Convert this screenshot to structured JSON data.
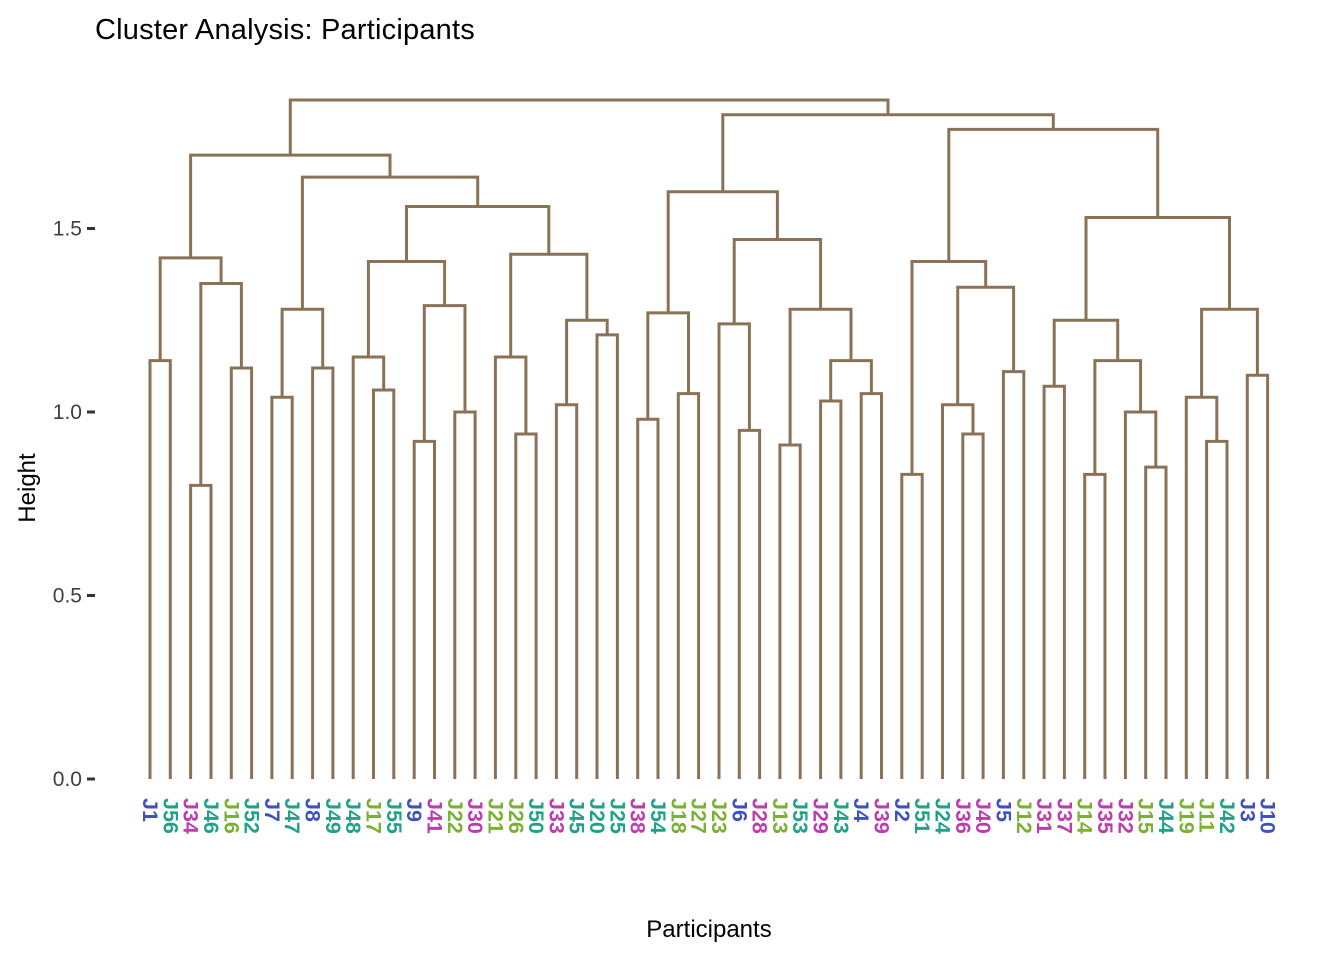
{
  "title": "Cluster Analysis: Participants",
  "axes": {
    "y_label": "Height",
    "x_label": "Participants",
    "y_tick_labels": [
      "0.0",
      "0.5",
      "1.0",
      "1.5"
    ]
  },
  "colors": {
    "line": "#8A7257",
    "title_text": "#000000",
    "tick_text": "#404040",
    "tick_mark": "#333333",
    "palette": {
      "blue": "#3E51C1",
      "teal": "#1FA287",
      "green": "#79B233",
      "magenta": "#BE3CAF"
    }
  },
  "chart_data": {
    "type": "dendrogram",
    "title": "Cluster Analysis: Participants",
    "xlabel": "Participants",
    "ylabel": "Height",
    "ylim": [
      0,
      1.9
    ],
    "yticks": [
      0,
      0.5,
      1.0,
      1.5
    ],
    "grid": false,
    "legend": false,
    "leaves": [
      {
        "label": "J1",
        "group": "blue"
      },
      {
        "label": "J56",
        "group": "teal"
      },
      {
        "label": "J34",
        "group": "magenta"
      },
      {
        "label": "J46",
        "group": "teal"
      },
      {
        "label": "J16",
        "group": "green"
      },
      {
        "label": "J52",
        "group": "teal"
      },
      {
        "label": "J7",
        "group": "blue"
      },
      {
        "label": "J47",
        "group": "teal"
      },
      {
        "label": "J8",
        "group": "blue"
      },
      {
        "label": "J49",
        "group": "teal"
      },
      {
        "label": "J48",
        "group": "teal"
      },
      {
        "label": "J17",
        "group": "green"
      },
      {
        "label": "J55",
        "group": "teal"
      },
      {
        "label": "J9",
        "group": "blue"
      },
      {
        "label": "J41",
        "group": "magenta"
      },
      {
        "label": "J22",
        "group": "green"
      },
      {
        "label": "J30",
        "group": "magenta"
      },
      {
        "label": "J21",
        "group": "green"
      },
      {
        "label": "J26",
        "group": "green"
      },
      {
        "label": "J50",
        "group": "teal"
      },
      {
        "label": "J33",
        "group": "magenta"
      },
      {
        "label": "J45",
        "group": "teal"
      },
      {
        "label": "J20",
        "group": "teal"
      },
      {
        "label": "J25",
        "group": "teal"
      },
      {
        "label": "J38",
        "group": "magenta"
      },
      {
        "label": "J54",
        "group": "teal"
      },
      {
        "label": "J18",
        "group": "green"
      },
      {
        "label": "J27",
        "group": "green"
      },
      {
        "label": "J23",
        "group": "green"
      },
      {
        "label": "J6",
        "group": "blue"
      },
      {
        "label": "J28",
        "group": "magenta"
      },
      {
        "label": "J13",
        "group": "green"
      },
      {
        "label": "J53",
        "group": "teal"
      },
      {
        "label": "J29",
        "group": "magenta"
      },
      {
        "label": "J43",
        "group": "teal"
      },
      {
        "label": "J4",
        "group": "blue"
      },
      {
        "label": "J39",
        "group": "magenta"
      },
      {
        "label": "J2",
        "group": "blue"
      },
      {
        "label": "J51",
        "group": "teal"
      },
      {
        "label": "J24",
        "group": "teal"
      },
      {
        "label": "J36",
        "group": "magenta"
      },
      {
        "label": "J40",
        "group": "magenta"
      },
      {
        "label": "J5",
        "group": "blue"
      },
      {
        "label": "J12",
        "group": "green"
      },
      {
        "label": "J31",
        "group": "magenta"
      },
      {
        "label": "J37",
        "group": "magenta"
      },
      {
        "label": "J14",
        "group": "green"
      },
      {
        "label": "J35",
        "group": "magenta"
      },
      {
        "label": "J32",
        "group": "magenta"
      },
      {
        "label": "J15",
        "group": "green"
      },
      {
        "label": "J44",
        "group": "teal"
      },
      {
        "label": "J19",
        "group": "green"
      },
      {
        "label": "J11",
        "group": "green"
      },
      {
        "label": "J42",
        "group": "teal"
      },
      {
        "label": "J3",
        "group": "blue"
      },
      {
        "label": "J10",
        "group": "blue"
      }
    ],
    "tree": {
      "h": 1.85,
      "c": [
        {
          "h": 1.7,
          "c": [
            {
              "h": 1.42,
              "c": [
                {
                  "h": 1.14,
                  "c": [
                    "J1",
                    "J56"
                  ]
                },
                {
                  "h": 1.35,
                  "c": [
                    {
                      "h": 0.8,
                      "c": [
                        "J34",
                        "J46"
                      ]
                    },
                    {
                      "h": 1.12,
                      "c": [
                        "J16",
                        "J52"
                      ]
                    }
                  ]
                }
              ]
            },
            {
              "h": 1.64,
              "c": [
                {
                  "h": 1.28,
                  "c": [
                    {
                      "h": 1.04,
                      "c": [
                        "J7",
                        "J47"
                      ]
                    },
                    {
                      "h": 1.12,
                      "c": [
                        "J8",
                        "J49"
                      ]
                    }
                  ]
                },
                {
                  "h": 1.56,
                  "c": [
                    {
                      "h": 1.41,
                      "c": [
                        {
                          "h": 1.15,
                          "c": [
                            "J48",
                            {
                              "h": 1.06,
                              "c": [
                                "J17",
                                "J55"
                              ]
                            }
                          ]
                        },
                        {
                          "h": 1.29,
                          "c": [
                            {
                              "h": 0.92,
                              "c": [
                                "J9",
                                "J41"
                              ]
                            },
                            {
                              "h": 1.0,
                              "c": [
                                "J22",
                                "J30"
                              ]
                            }
                          ]
                        }
                      ]
                    },
                    {
                      "h": 1.43,
                      "c": [
                        {
                          "h": 1.15,
                          "c": [
                            "J21",
                            {
                              "h": 0.94,
                              "c": [
                                "J26",
                                "J50"
                              ]
                            }
                          ]
                        },
                        {
                          "h": 1.25,
                          "c": [
                            {
                              "h": 1.02,
                              "c": [
                                "J33",
                                "J45"
                              ]
                            },
                            {
                              "h": 1.21,
                              "c": [
                                "J20",
                                "J25"
                              ]
                            }
                          ]
                        }
                      ]
                    }
                  ]
                }
              ]
            }
          ]
        },
        {
          "h": 1.81,
          "c": [
            {
              "h": 1.6,
              "c": [
                {
                  "h": 1.27,
                  "c": [
                    {
                      "h": 0.98,
                      "c": [
                        "J38",
                        "J54"
                      ]
                    },
                    {
                      "h": 1.05,
                      "c": [
                        "J18",
                        "J27"
                      ]
                    }
                  ]
                },
                {
                  "h": 1.47,
                  "c": [
                    {
                      "h": 1.24,
                      "c": [
                        "J23",
                        {
                          "h": 0.95,
                          "c": [
                            "J6",
                            "J28"
                          ]
                        }
                      ]
                    },
                    {
                      "h": 1.28,
                      "c": [
                        {
                          "h": 0.91,
                          "c": [
                            "J13",
                            "J53"
                          ]
                        },
                        {
                          "h": 1.14,
                          "c": [
                            {
                              "h": 1.03,
                              "c": [
                                "J29",
                                "J43"
                              ]
                            },
                            {
                              "h": 1.05,
                              "c": [
                                "J4",
                                "J39"
                              ]
                            }
                          ]
                        }
                      ]
                    }
                  ]
                }
              ]
            },
            {
              "h": 1.77,
              "c": [
                {
                  "h": 1.41,
                  "c": [
                    {
                      "h": 0.83,
                      "c": [
                        "J2",
                        "J51"
                      ]
                    },
                    {
                      "h": 1.34,
                      "c": [
                        {
                          "h": 1.02,
                          "c": [
                            "J24",
                            {
                              "h": 0.94,
                              "c": [
                                "J36",
                                "J40"
                              ]
                            }
                          ]
                        },
                        {
                          "h": 1.11,
                          "c": [
                            "J5",
                            "J12"
                          ]
                        }
                      ]
                    }
                  ]
                },
                {
                  "h": 1.53,
                  "c": [
                    {
                      "h": 1.25,
                      "c": [
                        {
                          "h": 1.07,
                          "c": [
                            "J31",
                            "J37"
                          ]
                        },
                        {
                          "h": 1.14,
                          "c": [
                            {
                              "h": 0.83,
                              "c": [
                                "J14",
                                "J35"
                              ]
                            },
                            {
                              "h": 1.0,
                              "c": [
                                "J32",
                                {
                                  "h": 0.85,
                                  "c": [
                                    "J15",
                                    "J44"
                                  ]
                                }
                              ]
                            }
                          ]
                        }
                      ]
                    },
                    {
                      "h": 1.28,
                      "c": [
                        {
                          "h": 1.04,
                          "c": [
                            "J19",
                            {
                              "h": 0.92,
                              "c": [
                                "J11",
                                "J42"
                              ]
                            }
                          ]
                        },
                        {
                          "h": 1.1,
                          "c": [
                            "J3",
                            "J10"
                          ]
                        }
                      ]
                    }
                  ]
                }
              ]
            }
          ]
        }
      ]
    }
  }
}
